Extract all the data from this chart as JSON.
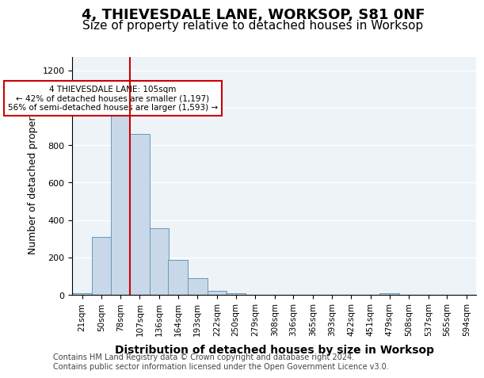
{
  "title": "4, THIEVESDALE LANE, WORKSOP, S81 0NF",
  "subtitle": "Size of property relative to detached houses in Worksop",
  "xlabel": "Distribution of detached houses by size in Worksop",
  "ylabel": "Number of detached properties",
  "bins": [
    "21sqm",
    "50sqm",
    "78sqm",
    "107sqm",
    "136sqm",
    "164sqm",
    "193sqm",
    "222sqm",
    "250sqm",
    "279sqm",
    "308sqm",
    "336sqm",
    "365sqm",
    "393sqm",
    "422sqm",
    "451sqm",
    "479sqm",
    "508sqm",
    "537sqm",
    "565sqm",
    "594sqm"
  ],
  "bin_edges": [
    21,
    50,
    78,
    107,
    136,
    164,
    193,
    222,
    250,
    279,
    308,
    336,
    365,
    393,
    422,
    451,
    479,
    508,
    537,
    565,
    594
  ],
  "heights": [
    10,
    310,
    975,
    860,
    355,
    185,
    90,
    20,
    10,
    0,
    0,
    0,
    0,
    0,
    0,
    0,
    10,
    0,
    0,
    0
  ],
  "bar_color": "#c8d8e8",
  "bar_edge_color": "#6699bb",
  "property_line_x": 107,
  "property_line_color": "#cc0000",
  "annotation_text": "4 THIEVESDALE LANE: 105sqm\n← 42% of detached houses are smaller (1,197)\n56% of semi-detached houses are larger (1,593) →",
  "annotation_box_color": "#ffffff",
  "annotation_box_edge_color": "#cc0000",
  "ylim": [
    0,
    1270
  ],
  "yticks": [
    0,
    200,
    400,
    600,
    800,
    1000,
    1200
  ],
  "footer_text": "Contains HM Land Registry data © Crown copyright and database right 2024.\nContains public sector information licensed under the Open Government Licence v3.0.",
  "background_color": "#eef3f8",
  "grid_color": "#ffffff",
  "title_fontsize": 13,
  "subtitle_fontsize": 11,
  "axis_fontsize": 9,
  "tick_fontsize": 8,
  "footer_fontsize": 7
}
